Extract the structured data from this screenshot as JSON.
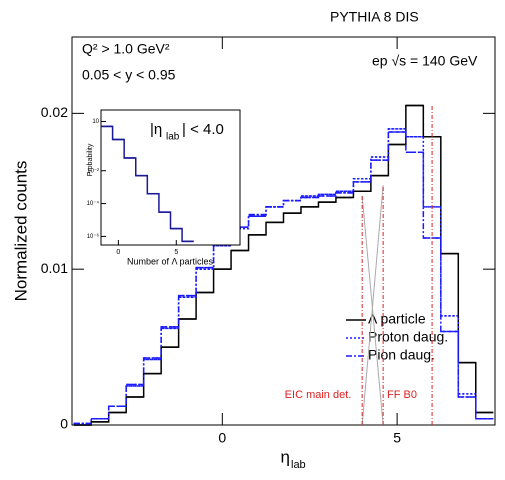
{
  "chart_data": {
    "type": "step",
    "header": "PYTHIA 8 DIS",
    "annotations": [
      "Q² > 1.0 GeV²",
      "0.05 < y < 0.95",
      "ep √s = 140 GeV"
    ],
    "region_labels": [
      "EIC main det.",
      "FF B0"
    ],
    "ylabel": "Normalized counts",
    "xlabel": "η",
    "xlabel_sub": "lab",
    "xlim": [
      -4.3,
      7.8
    ],
    "xticks": [
      0,
      5
    ],
    "ylim": [
      0,
      0.0249
    ],
    "yticks": [
      0,
      0.01,
      0.02
    ],
    "bin_width": 0.5,
    "x": [
      -4,
      -3.5,
      -3,
      -2.5,
      -2,
      -1.5,
      -1,
      -0.5,
      0,
      0.5,
      1,
      1.5,
      2,
      2.5,
      3,
      3.5,
      4,
      4.5,
      5,
      5.5,
      6,
      6.5,
      7,
      7.5
    ],
    "series": [
      {
        "name": "Λ particle",
        "color": "#000000",
        "dash": "solid",
        "values": [
          0,
          0.0002,
          0.0008,
          0.0018,
          0.0033,
          0.005,
          0.0068,
          0.0085,
          0.01,
          0.0112,
          0.0122,
          0.013,
          0.0136,
          0.014,
          0.0143,
          0.0146,
          0.015,
          0.016,
          0.018,
          0.0205,
          0.0185,
          0.011,
          0.004,
          0.0008
        ]
      },
      {
        "name": "Proton daug.",
        "color": "#1a1aff",
        "dash": "dotted",
        "values": [
          0.0001,
          0.0004,
          0.0012,
          0.0025,
          0.0042,
          0.0062,
          0.0082,
          0.01,
          0.0115,
          0.0126,
          0.0134,
          0.014,
          0.0144,
          0.0147,
          0.0148,
          0.015,
          0.0158,
          0.0172,
          0.019,
          0.0185,
          0.014,
          0.007,
          0.002,
          0.0004
        ]
      },
      {
        "name": "Pion daug.",
        "color": "#1a1aff",
        "dash": "dashdot",
        "values": [
          0.0001,
          0.0004,
          0.0012,
          0.0026,
          0.0043,
          0.0063,
          0.0083,
          0.0101,
          0.0116,
          0.0127,
          0.0135,
          0.014,
          0.0144,
          0.0146,
          0.0147,
          0.0149,
          0.0156,
          0.017,
          0.0188,
          0.0175,
          0.012,
          0.006,
          0.0018,
          0.0004
        ]
      }
    ],
    "vlines": [
      {
        "x": 4.0,
        "top": 0.0147
      },
      {
        "x": 4.6,
        "top": 0.0154
      },
      {
        "x": 6.0,
        "top": 0.0205
      }
    ],
    "vline_color": "#e02020",
    "inset": {
      "type": "step",
      "log_y": true,
      "title": "|η",
      "title_sub": "lab",
      "title_end": "| < 4.0",
      "ylabel": "Probability",
      "xlabel": "Number of Λ particles",
      "xlim": [
        -1.5,
        10.5
      ],
      "xticks": [
        0,
        5
      ],
      "ylim": [
        3e-07,
        50
      ],
      "yticks": [
        10,
        {
          "value": 0.01,
          "label": "10⁻²"
        },
        {
          "value": 0.0001,
          "label": "10⁻⁴"
        },
        {
          "value": 1e-06,
          "label": "10⁻⁶"
        }
      ],
      "bins": [
        -1.5,
        -0.5,
        0.5,
        1.5,
        2.5,
        3.5,
        4.5,
        5.5,
        6.5
      ],
      "values": [
        5,
        0.8,
        0.06,
        0.005,
        0.0004,
        3e-05,
        3e-06,
        5e-07
      ],
      "color": "#1a1a99"
    }
  }
}
